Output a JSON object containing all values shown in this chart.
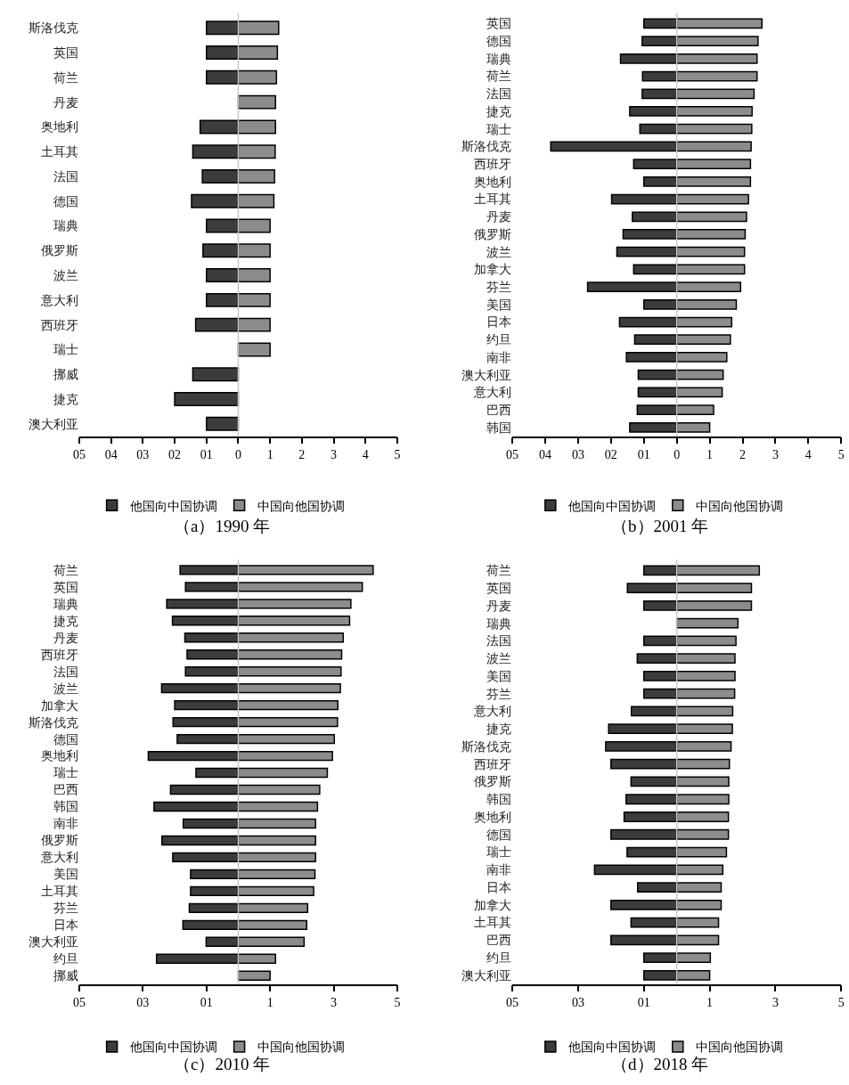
{
  "chart_data": [
    {
      "type": "bar",
      "orientation": "horizontal",
      "stacked": true,
      "title": "（a）1990 年",
      "legend": "bottom",
      "xlim": [
        -5,
        5
      ],
      "xticks": [
        {
          "value": -5,
          "label": "05"
        },
        {
          "value": -4,
          "label": "04"
        },
        {
          "value": -3,
          "label": "03"
        },
        {
          "value": -2,
          "label": "02"
        },
        {
          "value": -1,
          "label": "01"
        },
        0,
        1,
        2,
        3,
        4,
        5
      ],
      "ref_lines": [
        {
          "axis": "x",
          "value": 0,
          "color": "#c8c8c8"
        }
      ],
      "categories": [
        "斯洛伐克",
        "英国",
        "荷兰",
        "丹麦",
        "奥地利",
        "土耳其",
        "法国",
        "德国",
        "瑞典",
        "俄罗斯",
        "波兰",
        "意大利",
        "西班牙",
        "瑞士",
        "挪威",
        "捷克",
        "澳大利亚"
      ],
      "series": [
        {
          "name": "他国向中国协调",
          "color": "#3c3c3c",
          "values": [
            -1.0,
            -1.0,
            -1.0,
            null,
            -1.2,
            -1.43,
            -1.13,
            -1.47,
            -1.0,
            -1.11,
            -1.0,
            -1.0,
            -1.34,
            null,
            -1.43,
            -2.0,
            -1.0
          ]
        },
        {
          "name": "中国向他国协调",
          "color": "#8c8c8c",
          "values": [
            1.27,
            1.23,
            1.2,
            1.17,
            1.17,
            1.16,
            1.14,
            1.12,
            1.0,
            1.0,
            1.0,
            1.0,
            1.0,
            1.0,
            null,
            null,
            null
          ]
        }
      ]
    },
    {
      "type": "bar",
      "orientation": "horizontal",
      "stacked": true,
      "title": "（b）2001 年",
      "legend": "bottom",
      "xlim": [
        -5,
        5
      ],
      "xticks": [
        {
          "value": -5,
          "label": "05"
        },
        {
          "value": -4,
          "label": "04"
        },
        {
          "value": -3,
          "label": "03"
        },
        {
          "value": -2,
          "label": "02"
        },
        {
          "value": -1,
          "label": "01"
        },
        0,
        1,
        2,
        3,
        4,
        5
      ],
      "ref_lines": [
        {
          "axis": "x",
          "value": 0,
          "color": "#c8c8c8"
        }
      ],
      "categories": [
        "英国",
        "德国",
        "瑞典",
        "荷兰",
        "法国",
        "捷克",
        "瑞士",
        "斯洛伐克",
        "西班牙",
        "奥地利",
        "土耳其",
        "丹麦",
        "俄罗斯",
        "波兰",
        "加拿大",
        "芬兰",
        "美国",
        "日本",
        "约旦",
        "南非",
        "澳大利亚",
        "意大利",
        "巴西",
        "韩国"
      ],
      "series": [
        {
          "name": "他国向中国协调",
          "color": "#3c3c3c",
          "values": [
            -1.0,
            -1.05,
            -1.71,
            -1.04,
            -1.05,
            -1.43,
            -1.12,
            -3.83,
            -1.31,
            -1.0,
            -1.98,
            -1.35,
            -1.63,
            -1.82,
            -1.31,
            -2.71,
            -1.0,
            -1.74,
            -1.28,
            -1.53,
            -1.17,
            -1.17,
            -1.2,
            -1.43
          ]
        },
        {
          "name": "中国向他国协调",
          "color": "#8c8c8c",
          "values": [
            2.59,
            2.47,
            2.44,
            2.44,
            2.35,
            2.29,
            2.28,
            2.26,
            2.24,
            2.24,
            2.18,
            2.12,
            2.08,
            2.06,
            2.06,
            1.94,
            1.81,
            1.67,
            1.63,
            1.52,
            1.41,
            1.38,
            1.12,
            1.0
          ]
        }
      ]
    },
    {
      "type": "bar",
      "orientation": "horizontal",
      "stacked": true,
      "title": "（c）2010 年",
      "legend": "bottom",
      "xlim": [
        -5,
        5
      ],
      "xticks": [
        {
          "value": -5,
          "label": "05"
        },
        {
          "value": -3,
          "label": "03"
        },
        {
          "value": -1,
          "label": "01"
        },
        1,
        3,
        5
      ],
      "ref_lines": [
        {
          "axis": "x",
          "value": 0,
          "color": "#c8c8c8"
        }
      ],
      "categories": [
        "荷兰",
        "英国",
        "瑞典",
        "捷克",
        "丹麦",
        "西班牙",
        "法国",
        "波兰",
        "加拿大",
        "斯洛伐克",
        "德国",
        "奥地利",
        "瑞士",
        "巴西",
        "韩国",
        "南非",
        "俄罗斯",
        "意大利",
        "美国",
        "土耳其",
        "芬兰",
        "日本",
        "澳大利亚",
        "约旦",
        "挪威"
      ],
      "series": [
        {
          "name": "他国向中国协调",
          "color": "#3c3c3c",
          "values": [
            -1.83,
            -1.66,
            -2.25,
            -2.07,
            -1.68,
            -1.61,
            -1.66,
            -2.41,
            -2.0,
            -2.05,
            -1.92,
            -2.83,
            -1.33,
            -2.13,
            -2.65,
            -1.73,
            -2.4,
            -2.06,
            -1.5,
            -1.5,
            -1.54,
            -1.74,
            -1.01,
            -2.57,
            null
          ]
        },
        {
          "name": "中国向他国协调",
          "color": "#8c8c8c",
          "values": [
            4.24,
            3.9,
            3.54,
            3.5,
            3.3,
            3.25,
            3.23,
            3.21,
            3.13,
            3.12,
            3.02,
            2.96,
            2.8,
            2.56,
            2.49,
            2.43,
            2.43,
            2.43,
            2.41,
            2.37,
            2.18,
            2.15,
            2.07,
            1.17,
            1.0
          ]
        }
      ]
    },
    {
      "type": "bar",
      "orientation": "horizontal",
      "stacked": true,
      "title": "（d）2018 年",
      "legend": "bottom",
      "xlim": [
        -5,
        5
      ],
      "xticks": [
        {
          "value": -5,
          "label": "05"
        },
        {
          "value": -3,
          "label": "03"
        },
        {
          "value": -1,
          "label": "01"
        },
        1,
        3,
        5
      ],
      "ref_lines": [
        {
          "axis": "x",
          "value": 0,
          "color": "#c8c8c8"
        }
      ],
      "categories": [
        "荷兰",
        "英国",
        "丹麦",
        "瑞典",
        "法国",
        "波兰",
        "美国",
        "芬兰",
        "意大利",
        "捷克",
        "斯洛伐克",
        "西班牙",
        "俄罗斯",
        "韩国",
        "奥地利",
        "德国",
        "瑞士",
        "南非",
        "日本",
        "加拿大",
        "土耳其",
        "巴西",
        "约旦",
        "澳大利亚"
      ],
      "series": [
        {
          "name": "他国向中国协调",
          "color": "#3c3c3c",
          "values": [
            -1.0,
            -1.5,
            -1.0,
            null,
            -1.0,
            -1.2,
            -1.0,
            -1.0,
            -1.38,
            -2.07,
            -2.16,
            -2.0,
            -1.39,
            -1.54,
            -1.6,
            -2.0,
            -1.51,
            -2.5,
            -1.19,
            -2.0,
            -1.39,
            -2.0,
            -1.0,
            -1.0
          ]
        },
        {
          "name": "中国向他国协调",
          "color": "#8c8c8c",
          "values": [
            2.51,
            2.27,
            2.27,
            1.86,
            1.8,
            1.77,
            1.77,
            1.76,
            1.7,
            1.69,
            1.65,
            1.6,
            1.58,
            1.58,
            1.57,
            1.57,
            1.51,
            1.4,
            1.35,
            1.35,
            1.27,
            1.27,
            1.02,
            1.0
          ]
        }
      ]
    }
  ]
}
